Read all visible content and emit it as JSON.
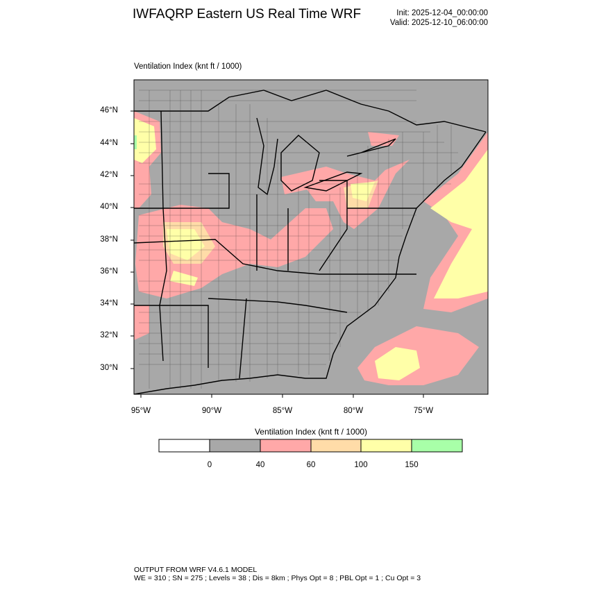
{
  "header": {
    "title": "IWFAQRP Eastern US Real Time WRF",
    "init": "Init: 2025-12-04_00:00:00",
    "valid": "Valid: 2025-12-10_06:00:00"
  },
  "map": {
    "subtitle": "Ventilation Index   (knt ft / 1000)",
    "lat_labels": [
      "46°N",
      "44°N",
      "42°N",
      "40°N",
      "38°N",
      "36°N",
      "34°N",
      "32°N",
      "30°N"
    ],
    "lon_labels": [
      "95°W",
      "90°W",
      "85°W",
      "80°W",
      "75°W"
    ]
  },
  "colorbar": {
    "title": "Ventilation Index  (knt ft / 1000)",
    "labels": [
      "0",
      "40",
      "60",
      "100",
      "150"
    ],
    "colors": [
      "#ffffff",
      "#a8a8a8",
      "#ffa8a8",
      "#ffdca8",
      "#ffffa8",
      "#a8ffa8"
    ]
  },
  "footer": {
    "line1": "OUTPUT FROM WRF V4.6.1 MODEL",
    "line2": "WE = 310 ; SN = 275 ; Levels = 38 ; Dis = 8km ; Phys Opt = 8 ; PBL Opt = 1 ; Cu Opt = 3"
  }
}
